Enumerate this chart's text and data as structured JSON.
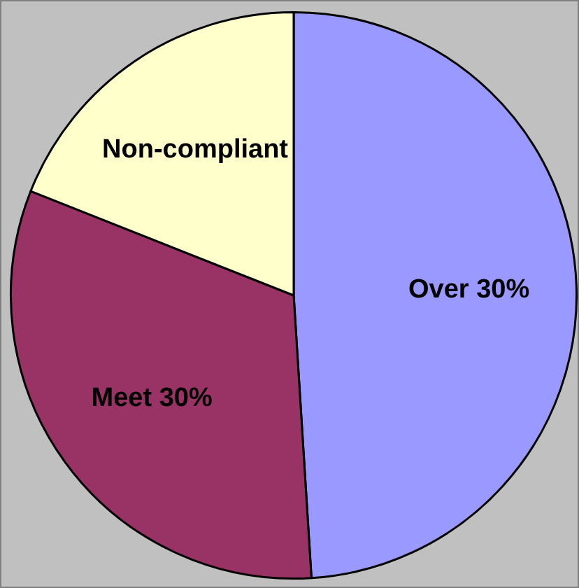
{
  "chart_data": {
    "type": "pie",
    "categories": [
      "Over 30%",
      "Meet 30%",
      "Non-compliant"
    ],
    "values": [
      49,
      32,
      19
    ],
    "colors": [
      "#9999ff",
      "#993366",
      "#ffffcc"
    ]
  }
}
